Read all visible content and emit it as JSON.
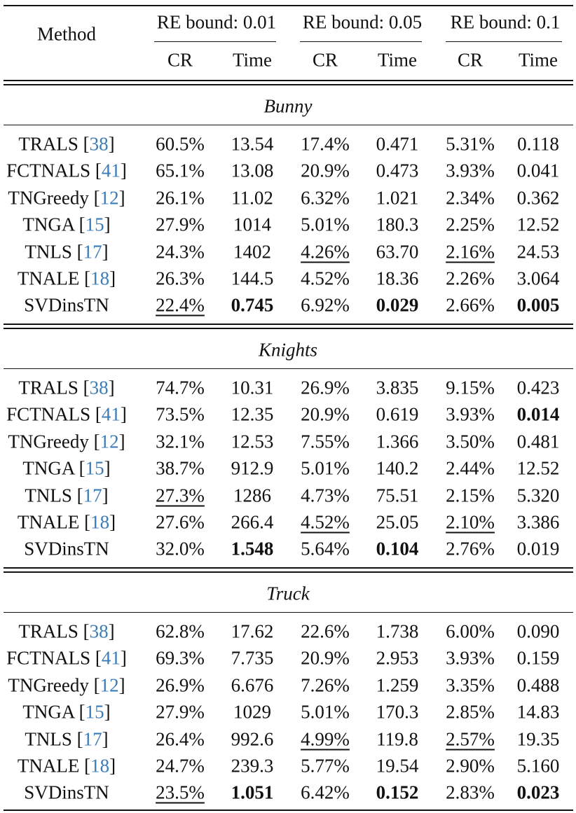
{
  "table": {
    "cite_color": "#3b7bb8",
    "header": {
      "method": "Method",
      "groups": [
        "RE bound: 0.01",
        "RE bound: 0.05",
        "RE bound: 0.1"
      ],
      "columns": [
        "CR",
        "Time",
        "CR",
        "Time",
        "CR",
        "Time"
      ]
    },
    "sections": [
      {
        "name": "Bunny",
        "rows": [
          {
            "method": [
              "TRALS [",
              "38",
              "]"
            ],
            "cells": [
              "60.5%",
              "13.54",
              "17.4%",
              "0.471",
              "5.31%",
              "0.118"
            ],
            "bold": [],
            "underline": []
          },
          {
            "method": [
              "FCTNALS [",
              "41",
              "]"
            ],
            "cells": [
              "65.1%",
              "13.08",
              "20.9%",
              "0.473",
              "3.93%",
              "0.041"
            ],
            "bold": [],
            "underline": []
          },
          {
            "method": [
              "TNGreedy [",
              "12",
              "]"
            ],
            "cells": [
              "26.1%",
              "11.02",
              "6.32%",
              "1.021",
              "2.34%",
              "0.362"
            ],
            "bold": [],
            "underline": []
          },
          {
            "method": [
              "TNGA [",
              "15",
              "]"
            ],
            "cells": [
              "27.9%",
              "1014",
              "5.01%",
              "180.3",
              "2.25%",
              "12.52"
            ],
            "bold": [],
            "underline": []
          },
          {
            "method": [
              "TNLS [",
              "17",
              "]"
            ],
            "cells": [
              "24.3%",
              "1402",
              "4.26%",
              "63.70",
              "2.16%",
              "24.53"
            ],
            "bold": [],
            "underline": [
              2,
              4
            ]
          },
          {
            "method": [
              "TNALE [",
              "18",
              "]"
            ],
            "cells": [
              "26.3%",
              "144.5",
              "4.52%",
              "18.36",
              "2.26%",
              "3.064"
            ],
            "bold": [],
            "underline": []
          },
          {
            "method": [
              "SVDinsTN"
            ],
            "cells": [
              "22.4%",
              "0.745",
              "6.92%",
              "0.029",
              "2.66%",
              "0.005"
            ],
            "bold": [
              1,
              3,
              5
            ],
            "underline": [
              0
            ]
          }
        ]
      },
      {
        "name": "Knights",
        "rows": [
          {
            "method": [
              "TRALS [",
              "38",
              "]"
            ],
            "cells": [
              "74.7%",
              "10.31",
              "26.9%",
              "3.835",
              "9.15%",
              "0.423"
            ],
            "bold": [],
            "underline": []
          },
          {
            "method": [
              "FCTNALS [",
              "41",
              "]"
            ],
            "cells": [
              "73.5%",
              "12.35",
              "20.9%",
              "0.619",
              "3.93%",
              "0.014"
            ],
            "bold": [
              5
            ],
            "underline": []
          },
          {
            "method": [
              "TNGreedy [",
              "12",
              "]"
            ],
            "cells": [
              "32.1%",
              "12.53",
              "7.55%",
              "1.366",
              "3.50%",
              "0.481"
            ],
            "bold": [],
            "underline": []
          },
          {
            "method": [
              "TNGA [",
              "15",
              "]"
            ],
            "cells": [
              "38.7%",
              "912.9",
              "5.01%",
              "140.2",
              "2.44%",
              "12.52"
            ],
            "bold": [],
            "underline": []
          },
          {
            "method": [
              "TNLS [",
              "17",
              "]"
            ],
            "cells": [
              "27.3%",
              "1286",
              "4.73%",
              "75.51",
              "2.15%",
              "5.320"
            ],
            "bold": [],
            "underline": [
              0
            ]
          },
          {
            "method": [
              "TNALE [",
              "18",
              "]"
            ],
            "cells": [
              "27.6%",
              "266.4",
              "4.52%",
              "25.05",
              "2.10%",
              "3.386"
            ],
            "bold": [],
            "underline": [
              2,
              4
            ]
          },
          {
            "method": [
              "SVDinsTN"
            ],
            "cells": [
              "32.0%",
              "1.548",
              "5.64%",
              "0.104",
              "2.76%",
              "0.019"
            ],
            "bold": [
              1,
              3
            ],
            "underline": []
          }
        ]
      },
      {
        "name": "Truck",
        "rows": [
          {
            "method": [
              "TRALS [",
              "38",
              "]"
            ],
            "cells": [
              "62.8%",
              "17.62",
              "22.6%",
              "1.738",
              "6.00%",
              "0.090"
            ],
            "bold": [],
            "underline": []
          },
          {
            "method": [
              "FCTNALS [",
              "41",
              "]"
            ],
            "cells": [
              "69.3%",
              "7.735",
              "20.9%",
              "2.953",
              "3.93%",
              "0.159"
            ],
            "bold": [],
            "underline": []
          },
          {
            "method": [
              "TNGreedy [",
              "12",
              "]"
            ],
            "cells": [
              "26.9%",
              "6.676",
              "7.26%",
              "1.259",
              "3.35%",
              "0.488"
            ],
            "bold": [],
            "underline": []
          },
          {
            "method": [
              "TNGA [",
              "15",
              "]"
            ],
            "cells": [
              "27.9%",
              "1029",
              "5.01%",
              "170.3",
              "2.85%",
              "14.83"
            ],
            "bold": [],
            "underline": []
          },
          {
            "method": [
              "TNLS [",
              "17",
              "]"
            ],
            "cells": [
              "26.4%",
              "992.6",
              "4.99%",
              "119.8",
              "2.57%",
              "19.35"
            ],
            "bold": [],
            "underline": [
              2,
              4
            ]
          },
          {
            "method": [
              "TNALE [",
              "18",
              "]"
            ],
            "cells": [
              "24.7%",
              "239.3",
              "5.77%",
              "19.54",
              "2.90%",
              "5.160"
            ],
            "bold": [],
            "underline": []
          },
          {
            "method": [
              "SVDinsTN"
            ],
            "cells": [
              "23.5%",
              "1.051",
              "6.42%",
              "0.152",
              "2.83%",
              "0.023"
            ],
            "bold": [
              1,
              3,
              5
            ],
            "underline": [
              0
            ]
          }
        ]
      }
    ]
  }
}
